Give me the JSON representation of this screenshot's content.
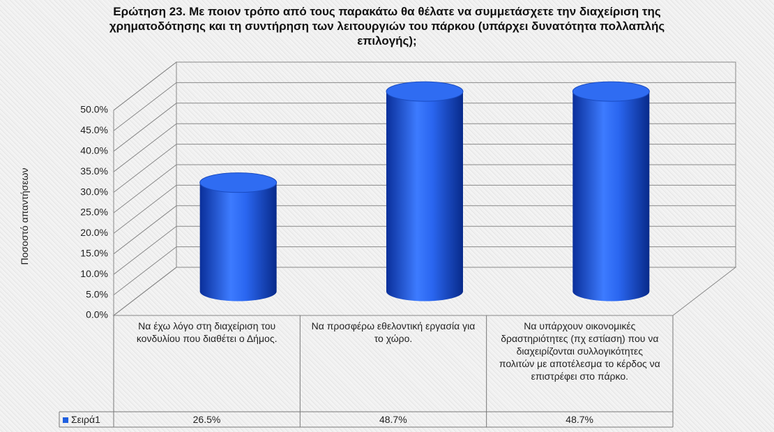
{
  "chart_data": {
    "type": "cylinder",
    "title": "Ερώτηση 23. Με ποιον τρόπο από τους παρακάτω θα θέλατε να συμμετάσχετε την διαχείριση της χρηματοδότησης και τη συντήρηση των λειτουργιών του πάρκου (υπάρχει δυνατότητα πολλαπλής επιλογής);",
    "y_label": "Ποσοστό απαντήσεων",
    "categories": [
      "Να έχω λόγο στη διαχείριση του κονδυλίου που διαθέτει ο Δήμος.",
      "Να προσφέρω εθελοντική εργασία για το χώρο.",
      "Να υπάρχουν οικονομικές δραστηριότητες (πχ εστίαση) που να διαχειρίζονται συλλογικότητες πολιτών με αποτέλεσμα το κέρδος να επιστρέφει στο πάρκο."
    ],
    "series": [
      {
        "name": "Σειρά1",
        "color": "#1f5fe0",
        "values": [
          26.5,
          48.7,
          48.7
        ],
        "value_labels": [
          "26.5%",
          "48.7%",
          "48.7%"
        ]
      }
    ],
    "ylim": [
      0,
      50
    ],
    "yticks": [
      {
        "value": 0,
        "label": "0.0%"
      },
      {
        "value": 5,
        "label": "5.0%"
      },
      {
        "value": 10,
        "label": "10.0%"
      },
      {
        "value": 15,
        "label": "15.0%"
      },
      {
        "value": 20,
        "label": "20.0%"
      },
      {
        "value": 25,
        "label": "25.0%"
      },
      {
        "value": 30,
        "label": "30.0%"
      },
      {
        "value": 35,
        "label": "35.0%"
      },
      {
        "value": 40,
        "label": "40.0%"
      },
      {
        "value": 45,
        "label": "45.0%"
      },
      {
        "value": 50,
        "label": "50.0%"
      }
    ],
    "grid": true
  }
}
